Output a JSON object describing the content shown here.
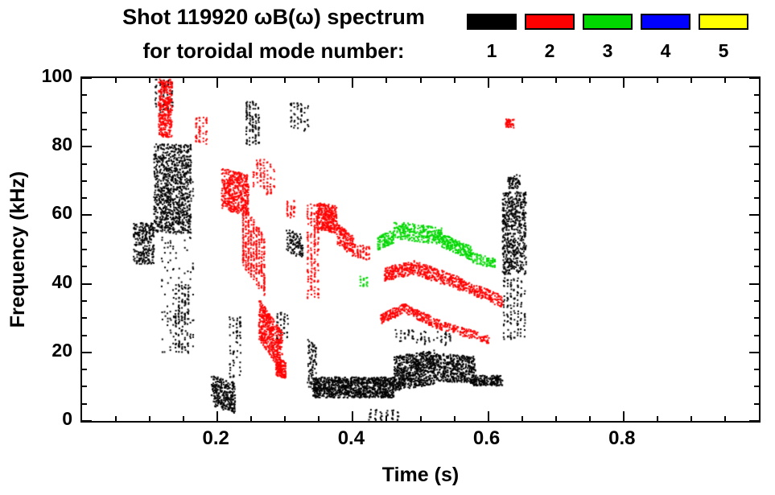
{
  "header": {
    "title": "Shot 119920 ωB(ω) spectrum",
    "subtitle": "for toroidal mode number:"
  },
  "chart_data": {
    "type": "scatter",
    "title": "Shot 119920 ωB(ω) spectrum",
    "subtitle": "for toroidal mode number:",
    "x_axis": {
      "label": "Time (s)",
      "range": [
        0,
        1.0
      ],
      "major_ticks": [
        0.2,
        0.4,
        0.6,
        0.8
      ],
      "minor_tick_step": 0.05
    },
    "y_axis": {
      "label": "Frequency (kHz)",
      "range": [
        0,
        100
      ],
      "major_ticks": [
        0,
        20,
        40,
        60,
        80,
        100
      ],
      "minor_tick_step": 5
    },
    "grid": false,
    "legend": {
      "position": "top-right",
      "entries": [
        {
          "label": "1",
          "color": "#000000"
        },
        {
          "label": "2",
          "color": "#ff0000"
        },
        {
          "label": "3",
          "color": "#00d800"
        },
        {
          "label": "4",
          "color": "#0000ff"
        },
        {
          "label": "5",
          "color": "#ffff00"
        }
      ]
    },
    "cluster_fields": [
      "t_start_s",
      "t_end_s",
      "freq_start_khz",
      "freq_end_khz",
      "freq_thickness_khz",
      "num_points",
      "streak_columns_0_uniform"
    ],
    "series": [
      {
        "name": "toroidal mode n=1",
        "color": "#000000",
        "clusters": [
          [
            0.075,
            0.105,
            52,
            52,
            12,
            260,
            0
          ],
          [
            0.105,
            0.16,
            68,
            68,
            26,
            900,
            0
          ],
          [
            0.105,
            0.135,
            95,
            95,
            10,
            70,
            5
          ],
          [
            0.115,
            0.165,
            45,
            45,
            50,
            160,
            12
          ],
          [
            0.135,
            0.158,
            30,
            30,
            20,
            130,
            5
          ],
          [
            0.19,
            0.225,
            9,
            7,
            9,
            280,
            0
          ],
          [
            0.215,
            0.235,
            22,
            22,
            18,
            70,
            4
          ],
          [
            0.24,
            0.262,
            87,
            87,
            13,
            110,
            5
          ],
          [
            0.285,
            0.305,
            28,
            28,
            8,
            40,
            4
          ],
          [
            0.3,
            0.325,
            53,
            51,
            7,
            100,
            0
          ],
          [
            0.305,
            0.335,
            90,
            88,
            8,
            55,
            6
          ],
          [
            0.332,
            0.345,
            17,
            15,
            14,
            90,
            0
          ],
          [
            0.34,
            0.46,
            10,
            10,
            6,
            950,
            0
          ],
          [
            0.46,
            0.52,
            14,
            16,
            10,
            650,
            0
          ],
          [
            0.52,
            0.58,
            16,
            15,
            8,
            450,
            0
          ],
          [
            0.575,
            0.62,
            12,
            12,
            3,
            180,
            0
          ],
          [
            0.62,
            0.655,
            55,
            55,
            24,
            550,
            0
          ],
          [
            0.62,
            0.655,
            33,
            33,
            18,
            130,
            7
          ],
          [
            0.628,
            0.646,
            70,
            70,
            4,
            60,
            0
          ],
          [
            0.42,
            0.47,
            2,
            2,
            3,
            45,
            6
          ],
          [
            0.46,
            0.545,
            25,
            24,
            4,
            70,
            14
          ]
        ]
      },
      {
        "name": "toroidal mode n=2",
        "color": "#ff0000",
        "clusters": [
          [
            0.112,
            0.132,
            92,
            92,
            18,
            360,
            0
          ],
          [
            0.165,
            0.185,
            85,
            85,
            8,
            55,
            4
          ],
          [
            0.205,
            0.245,
            68,
            66,
            12,
            480,
            0
          ],
          [
            0.235,
            0.27,
            55,
            45,
            18,
            380,
            9
          ],
          [
            0.26,
            0.295,
            30,
            20,
            12,
            480,
            0
          ],
          [
            0.285,
            0.3,
            16,
            15,
            5,
            130,
            0
          ],
          [
            0.25,
            0.285,
            73,
            70,
            10,
            90,
            7
          ],
          [
            0.3,
            0.315,
            62,
            62,
            5,
            35,
            3
          ],
          [
            0.33,
            0.35,
            50,
            50,
            28,
            170,
            4
          ],
          [
            0.345,
            0.375,
            60,
            59,
            8,
            320,
            0
          ],
          [
            0.375,
            0.4,
            55,
            51,
            6,
            160,
            0
          ],
          [
            0.4,
            0.425,
            50,
            49,
            4,
            60,
            6
          ],
          [
            0.445,
            0.49,
            43,
            45,
            4,
            210,
            0
          ],
          [
            0.49,
            0.56,
            45,
            40,
            4,
            260,
            0
          ],
          [
            0.56,
            0.62,
            40,
            35,
            3.5,
            190,
            0
          ],
          [
            0.44,
            0.475,
            30,
            33,
            3,
            130,
            0
          ],
          [
            0.475,
            0.53,
            33,
            28,
            3,
            160,
            0
          ],
          [
            0.53,
            0.6,
            28,
            24,
            2.5,
            130,
            0
          ],
          [
            0.625,
            0.637,
            87,
            87,
            2.5,
            45,
            0
          ]
        ]
      },
      {
        "name": "toroidal mode n=3",
        "color": "#00d800",
        "clusters": [
          [
            0.408,
            0.422,
            41,
            41,
            3,
            22,
            3
          ],
          [
            0.435,
            0.46,
            52,
            54,
            4,
            110,
            10
          ],
          [
            0.46,
            0.53,
            56,
            54,
            5,
            280,
            0
          ],
          [
            0.53,
            0.575,
            53,
            49,
            4,
            220,
            0
          ],
          [
            0.575,
            0.61,
            48,
            46,
            3,
            90,
            12
          ]
        ]
      },
      {
        "name": "toroidal mode n=4",
        "color": "#0000ff",
        "clusters": []
      },
      {
        "name": "toroidal mode n=5",
        "color": "#ffff00",
        "clusters": []
      }
    ]
  }
}
